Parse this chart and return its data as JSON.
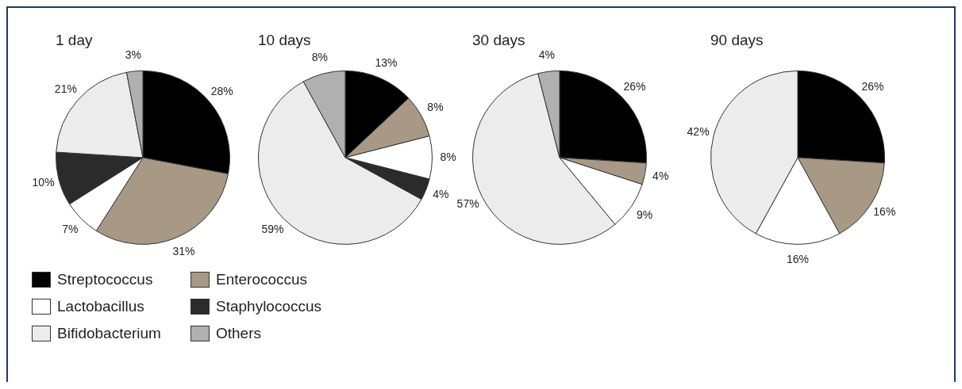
{
  "chart_data": [
    {
      "type": "pie",
      "title": "1 day",
      "categories": [
        "Streptococcus",
        "Enterococcus",
        "Lactobacillus",
        "Staphylococcus",
        "Bifidobacterium",
        "Others"
      ],
      "values": [
        28,
        31,
        7,
        10,
        21,
        3
      ],
      "colors": [
        "#000000",
        "#a89886",
        "#ffffff",
        "#2b2b2b",
        "#ececec",
        "#b0b0b0"
      ],
      "value_labels": [
        "28%",
        "31%",
        "7%",
        "10%",
        "21%",
        "3%"
      ],
      "legend": "bottom"
    },
    {
      "type": "pie",
      "title": "10 days",
      "categories": [
        null,
        null,
        null,
        null,
        null,
        null
      ],
      "values": [
        13,
        8,
        8,
        4,
        59,
        8
      ],
      "colors": [
        "#000000",
        "#a89886",
        "#ffffff",
        "#2b2b2b",
        "#ececec",
        "#b0b0b0"
      ],
      "value_labels": [
        "13%",
        "8%",
        "8%",
        "4%",
        "59%",
        "8%"
      ]
    },
    {
      "type": "pie",
      "title": "30 days",
      "categories": [
        null,
        null,
        null,
        null,
        null
      ],
      "values": [
        26,
        4,
        9,
        57,
        4
      ],
      "colors": [
        "#000000",
        "#a89886",
        "#ffffff",
        "#ececec",
        "#b0b0b0"
      ],
      "value_labels": [
        "26%",
        "4%",
        "9%",
        "57%",
        "4%"
      ]
    },
    {
      "type": "pie",
      "title": "90 days",
      "categories": [
        null,
        null,
        null,
        null
      ],
      "values": [
        26,
        16,
        16,
        42
      ],
      "colors": [
        "#000000",
        "#a89886",
        "#ffffff",
        "#ececec"
      ],
      "value_labels": [
        "26%",
        "16%",
        "16%",
        "42%"
      ]
    }
  ]
}
